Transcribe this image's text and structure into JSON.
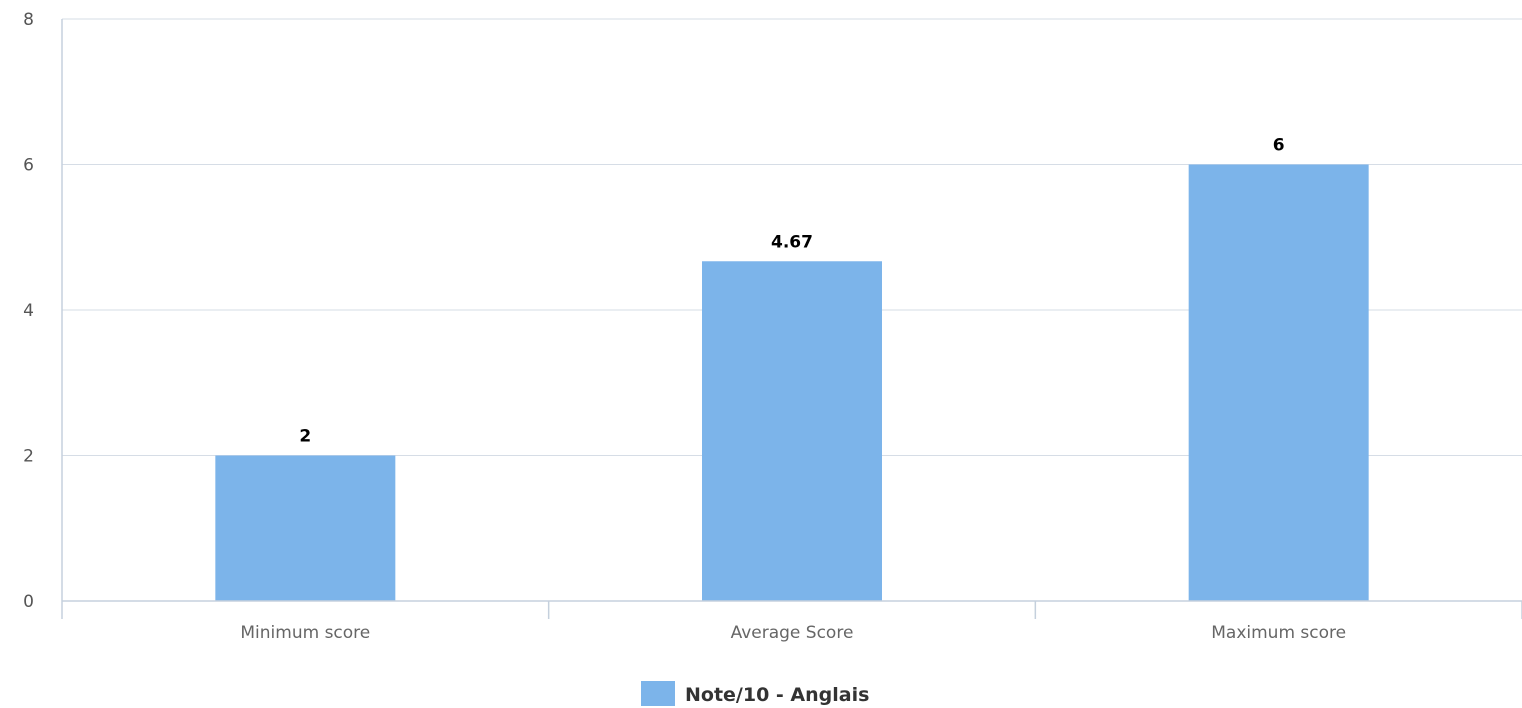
{
  "chart_data": {
    "type": "bar",
    "categories": [
      "Minimum score",
      "Average Score",
      "Maximum score"
    ],
    "series": [
      {
        "name": "Note/10 - Anglais",
        "values": [
          2,
          4.67,
          6
        ],
        "data_labels": [
          "2",
          "4.67",
          "6"
        ],
        "color": "#7cb4ea"
      }
    ],
    "ylim": [
      0,
      8
    ],
    "yticks": [
      0,
      2,
      4,
      6,
      8
    ],
    "grid": true,
    "legend_position": "bottom-center"
  },
  "colors": {
    "bar": "#7cb4ea",
    "grid": "#d6dde6",
    "axis": "#c5d0dd"
  }
}
